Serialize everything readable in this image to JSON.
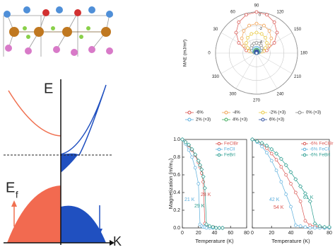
{
  "chart_data": [
    {
      "type": "polar",
      "ylabel": "MAE (mJ/m²)",
      "theta_zero": "left",
      "theta_direction": "clockwise",
      "theta": [
        0,
        15,
        30,
        45,
        60,
        75,
        90,
        105,
        120,
        135,
        150,
        165,
        180
      ],
      "thetaticks": [
        0,
        30,
        60,
        90,
        120,
        150,
        180,
        210,
        240,
        270,
        300,
        330
      ],
      "rlim": [
        -6,
        0
      ],
      "rticks": [
        -4,
        -2,
        0
      ],
      "legend_columns": 4,
      "series": [
        {
          "name": "-6%",
          "color": "#d9534f",
          "values": [
            -6,
            -4.45,
            -3,
            -1.76,
            -0.8,
            -0.2,
            0,
            -0.2,
            -0.8,
            -1.76,
            -3,
            -4.45,
            -6
          ]
        },
        {
          "name": "-4%",
          "color": "#f0a050",
          "values": [
            -6,
            -4.88,
            -3.84,
            -2.95,
            -2.26,
            -1.83,
            -1.68,
            -1.83,
            -2.26,
            -2.95,
            -3.84,
            -4.88,
            -6
          ]
        },
        {
          "name": "-2% (×3)",
          "color": "#e8c840",
          "values": [
            -6,
            -5.22,
            -4.5,
            -3.88,
            -3.4,
            -3.1,
            -3,
            -3.1,
            -3.4,
            -3.88,
            -4.5,
            -5.22,
            -6
          ]
        },
        {
          "name": "0% (×3)",
          "color": "#888888",
          "values": [
            -6,
            -5.61,
            -5.25,
            -4.94,
            -4.7,
            -4.55,
            -4.5,
            -4.55,
            -4.7,
            -4.94,
            -5.25,
            -5.61,
            -6
          ]
        },
        {
          "name": "2% (×3)",
          "color": "#5aaedc",
          "values": [
            -6,
            -5.79,
            -5.6,
            -5.43,
            -5.31,
            -5.23,
            -5.2,
            -5.23,
            -5.31,
            -5.43,
            -5.6,
            -5.79,
            -6
          ]
        },
        {
          "name": "4% (×3)",
          "color": "#3caa5a",
          "values": [
            -6,
            -5.87,
            -5.75,
            -5.65,
            -5.57,
            -5.52,
            -5.5,
            -5.52,
            -5.57,
            -5.65,
            -5.75,
            -5.87,
            -6
          ]
        },
        {
          "name": "6% (×3)",
          "color": "#3050a0",
          "values": [
            -6,
            -5.92,
            -5.85,
            -5.79,
            -5.74,
            -5.71,
            -5.7,
            -5.71,
            -5.74,
            -5.79,
            -5.85,
            -5.92,
            -6
          ]
        }
      ]
    },
    {
      "type": "line",
      "xlabel": "Temperature (K)",
      "ylabel": "Magnetization (m/m₀)",
      "x": [
        0,
        4,
        8,
        12,
        16,
        20,
        22,
        24,
        26,
        28,
        30,
        34,
        38,
        42,
        46,
        50
      ],
      "xlim": [
        0,
        80
      ],
      "xticks": [
        0,
        20,
        40,
        60,
        80
      ],
      "ylim": [
        0,
        1
      ],
      "yticks": [
        {
          "value": 0,
          "label": "0.0"
        },
        0.2,
        0.4,
        0.6,
        0.8,
        {
          "value": 1,
          "label": "1.0"
        }
      ],
      "series": [
        {
          "name": "FeClBr",
          "color": "#d9534f",
          "values": [
            1.0,
            0.97,
            0.93,
            0.88,
            0.82,
            0.74,
            0.69,
            0.62,
            0.52,
            0.05,
            0.02,
            0.01,
            0.01,
            0,
            0,
            0
          ]
        },
        {
          "name": "FeClI",
          "color": "#5aaedc",
          "values": [
            1.0,
            0.95,
            0.88,
            0.8,
            0.68,
            0.5,
            0.04,
            0.02,
            0.01,
            0.01,
            0,
            0,
            0,
            0,
            0,
            0
          ]
        },
        {
          "name": "FeBrI",
          "color": "#2a9d8f",
          "values": [
            1.0,
            0.97,
            0.94,
            0.89,
            0.83,
            0.76,
            0.71,
            0.66,
            0.58,
            0.45,
            0.04,
            0.02,
            0.01,
            0,
            0,
            0
          ]
        }
      ],
      "annotations": [
        "28 K",
        "21 K",
        "29 K"
      ]
    },
    {
      "type": "line",
      "xlabel": "Temperature (K)",
      "x": [
        0,
        5,
        10,
        15,
        20,
        25,
        30,
        35,
        40,
        45,
        50,
        55,
        60,
        65,
        70,
        75,
        80
      ],
      "xlim": [
        0,
        80
      ],
      "xticks": [
        0,
        20,
        40,
        60,
        80
      ],
      "ylim": [
        0,
        1
      ],
      "yticks": [
        0,
        0.2,
        0.4,
        0.6,
        0.8,
        1
      ],
      "ytick_labels": false,
      "series": [
        {
          "name": "-6% FeClBr",
          "color": "#d9534f",
          "values": [
            1.0,
            0.98,
            0.95,
            0.9,
            0.84,
            0.77,
            0.69,
            0.6,
            0.5,
            0.4,
            0.3,
            0.08,
            0.03,
            0.02,
            0.01,
            0,
            0
          ]
        },
        {
          "name": "-6% FeClI",
          "color": "#5aaedc",
          "values": [
            1.0,
            0.97,
            0.92,
            0.85,
            0.76,
            0.65,
            0.52,
            0.38,
            0.24,
            0.03,
            0.02,
            0.01,
            0,
            0,
            0,
            0,
            0
          ]
        },
        {
          "name": "-6% FeBrI",
          "color": "#2a9d8f",
          "values": [
            1.0,
            0.98,
            0.96,
            0.93,
            0.89,
            0.84,
            0.78,
            0.71,
            0.63,
            0.55,
            0.47,
            0.39,
            0.3,
            0.05,
            0.02,
            0.01,
            0.01
          ]
        }
      ],
      "annotations": [
        "54 K",
        "42 K",
        "61 K"
      ]
    }
  ],
  "diagram": {
    "energy_label": "E",
    "fermi_label": "E",
    "fermi_subscript": "f",
    "k_label": "K"
  }
}
